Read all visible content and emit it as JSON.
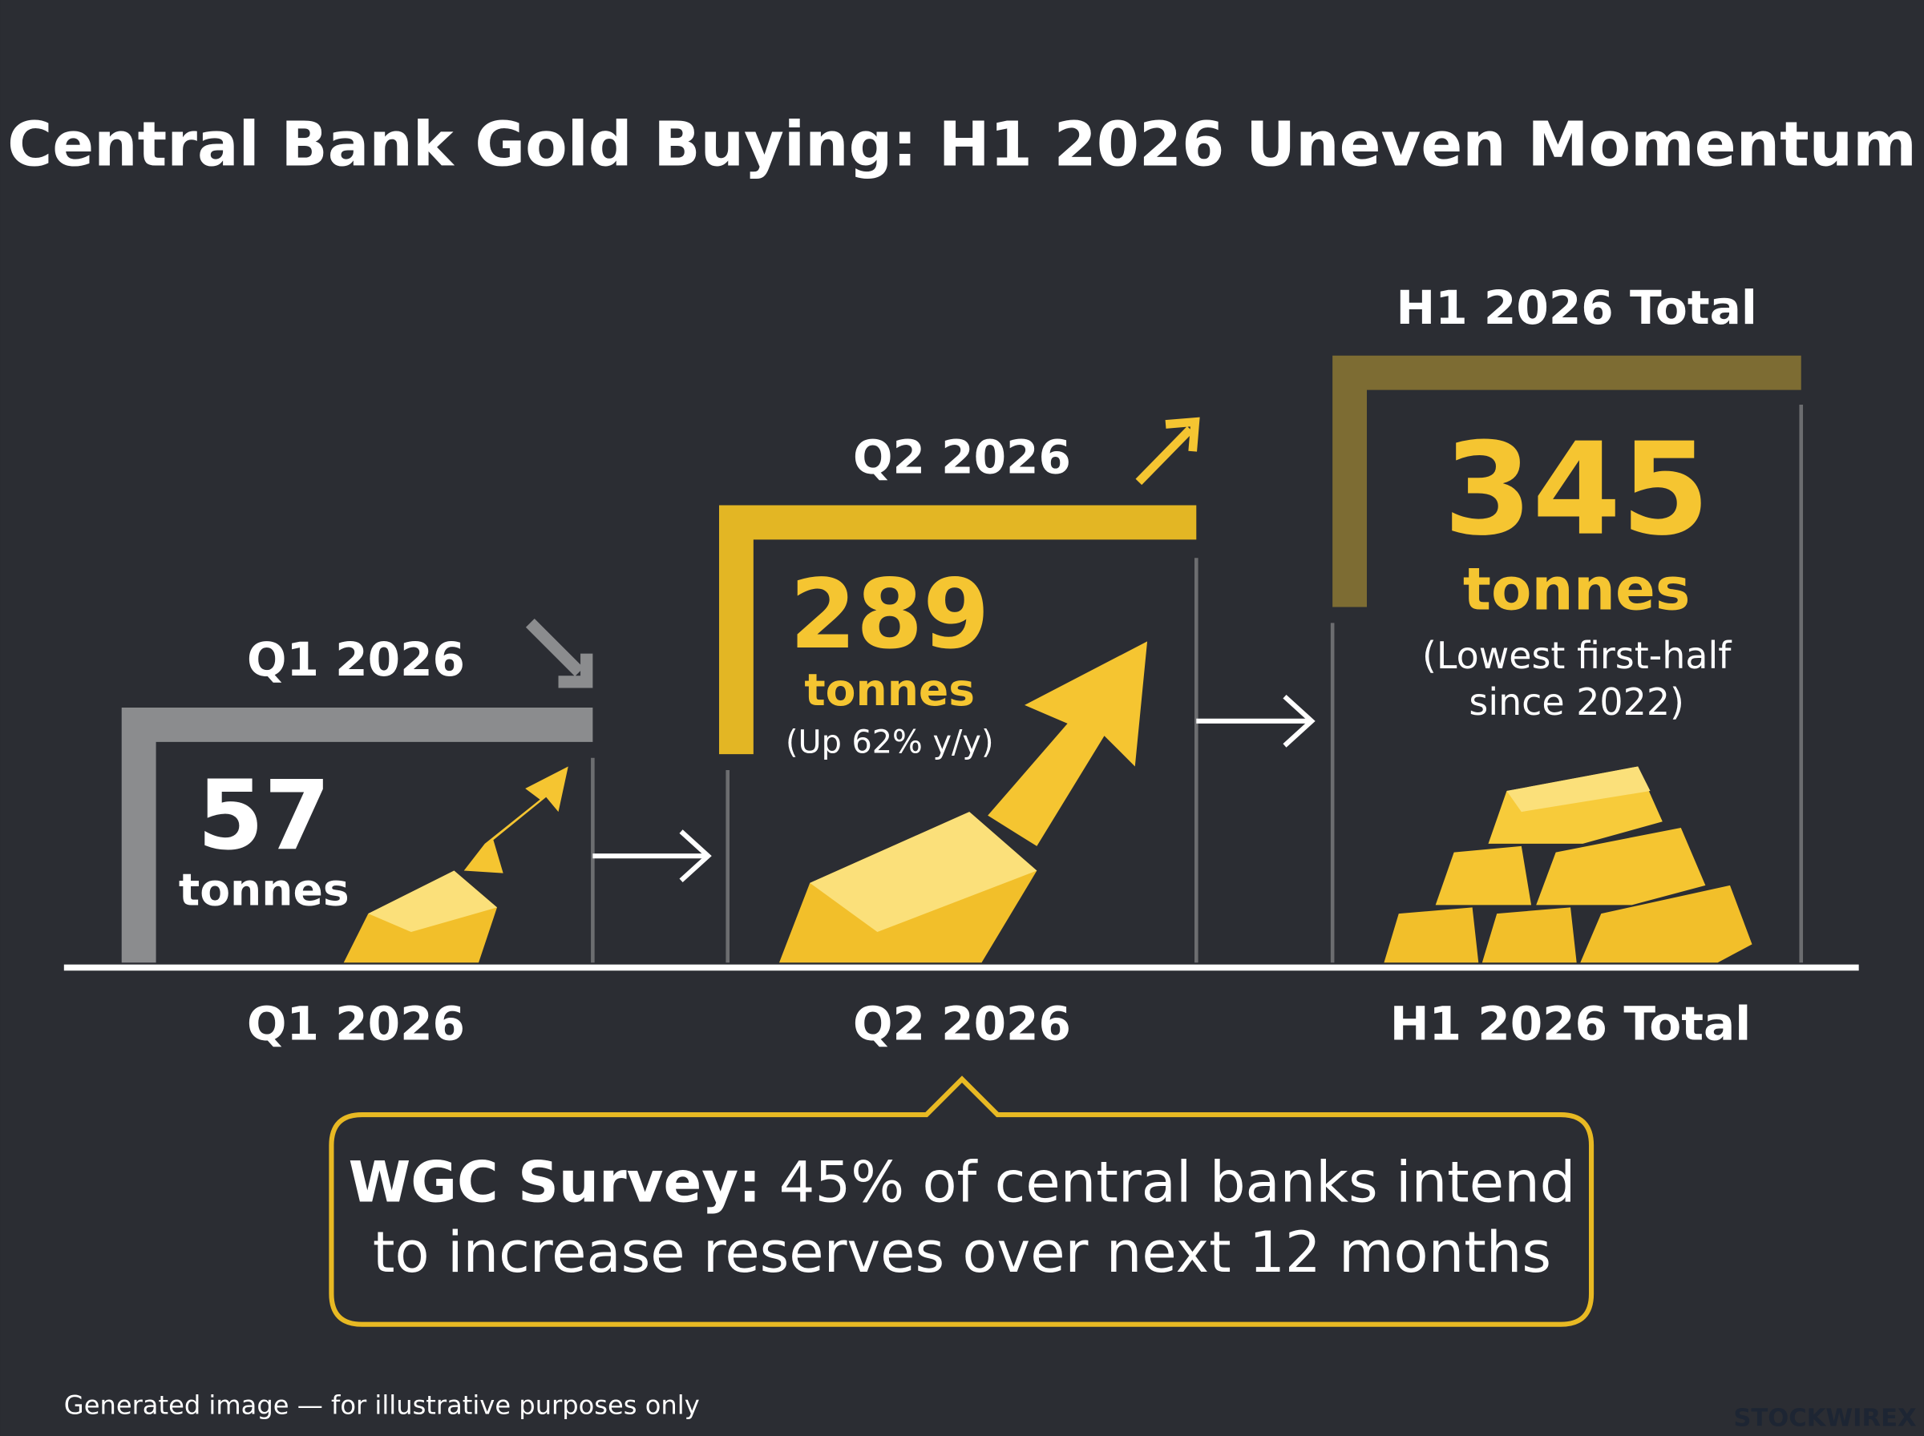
{
  "title": "Central Bank Gold Buying: H1 2026 Uneven Momentum",
  "panels": [
    {
      "label": "Q1 2026",
      "value": 57,
      "unit": "tonnes",
      "axis_label": "Q1 2026"
    },
    {
      "label": "Q2 2026",
      "value": 289,
      "unit": "tonnes",
      "note": [
        "(Up 62% y/y)"
      ],
      "axis_label": "Q2 2026"
    },
    {
      "label": "H1 2026 Total",
      "value": 345,
      "unit": "tonnes",
      "note": [
        "(Lowest first-half",
        "since 2022)"
      ],
      "axis_label": "H1 2026 Total"
    }
  ],
  "callout": {
    "bold": "WGC Survey:",
    "lines": [
      "45% of central banks intend",
      "to increase reserves over next 12 months"
    ]
  },
  "footer": "Generated image — for illustrative purposes only",
  "brand": "STOCKWIREX"
}
